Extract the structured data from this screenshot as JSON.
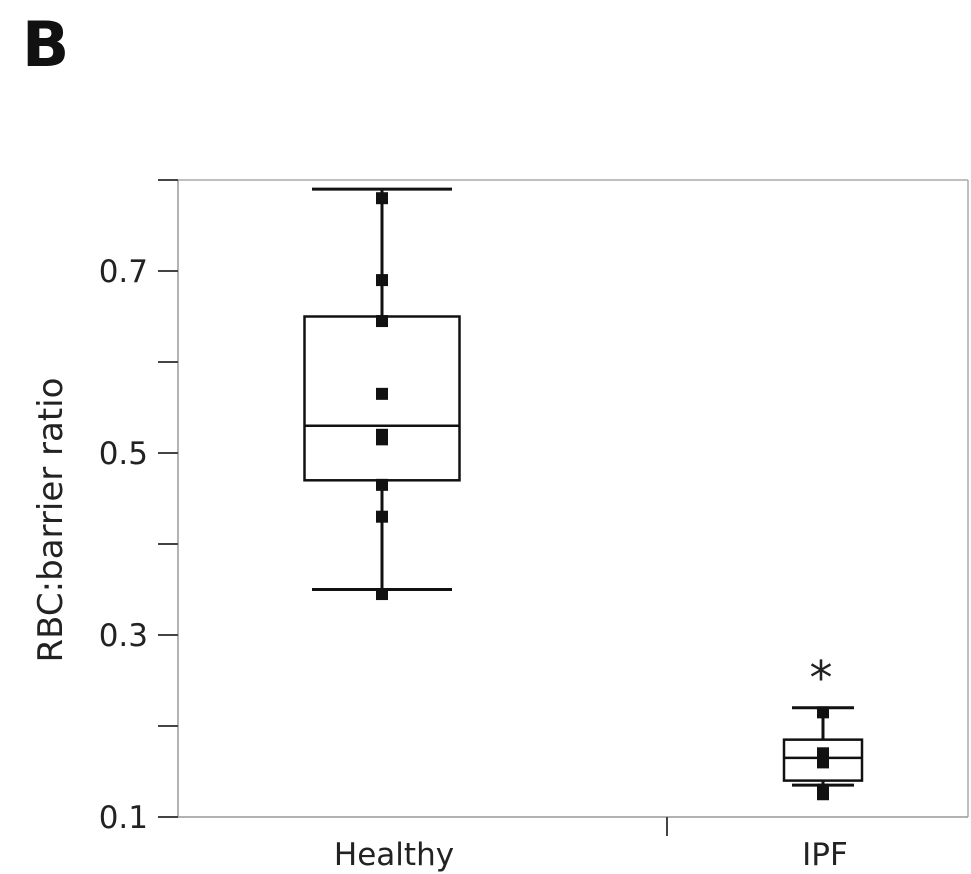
{
  "panel_label": "B",
  "chart_data": {
    "type": "box",
    "title": "",
    "xlabel": "",
    "ylabel": "RBC:barrier ratio",
    "ylim": [
      0.1,
      0.8
    ],
    "yticks_labeled": [
      0.1,
      0.3,
      0.5,
      0.7
    ],
    "yticks_minor": [
      0.2,
      0.4,
      0.6
    ],
    "grid": false,
    "categories": [
      "Healthy",
      "IPF"
    ],
    "boxes": [
      {
        "category": "Healthy",
        "whisker_low": 0.35,
        "q1": 0.47,
        "median": 0.53,
        "q3": 0.65,
        "whisker_high": 0.79,
        "points": [
          0.78,
          0.69,
          0.645,
          0.565,
          0.52,
          0.515,
          0.465,
          0.43,
          0.345
        ]
      },
      {
        "category": "IPF",
        "whisker_low": 0.135,
        "q1": 0.14,
        "median": 0.165,
        "q3": 0.185,
        "whisker_high": 0.22,
        "points": [
          0.215,
          0.17,
          0.16,
          0.13,
          0.125
        ],
        "annotation": "*"
      }
    ]
  }
}
